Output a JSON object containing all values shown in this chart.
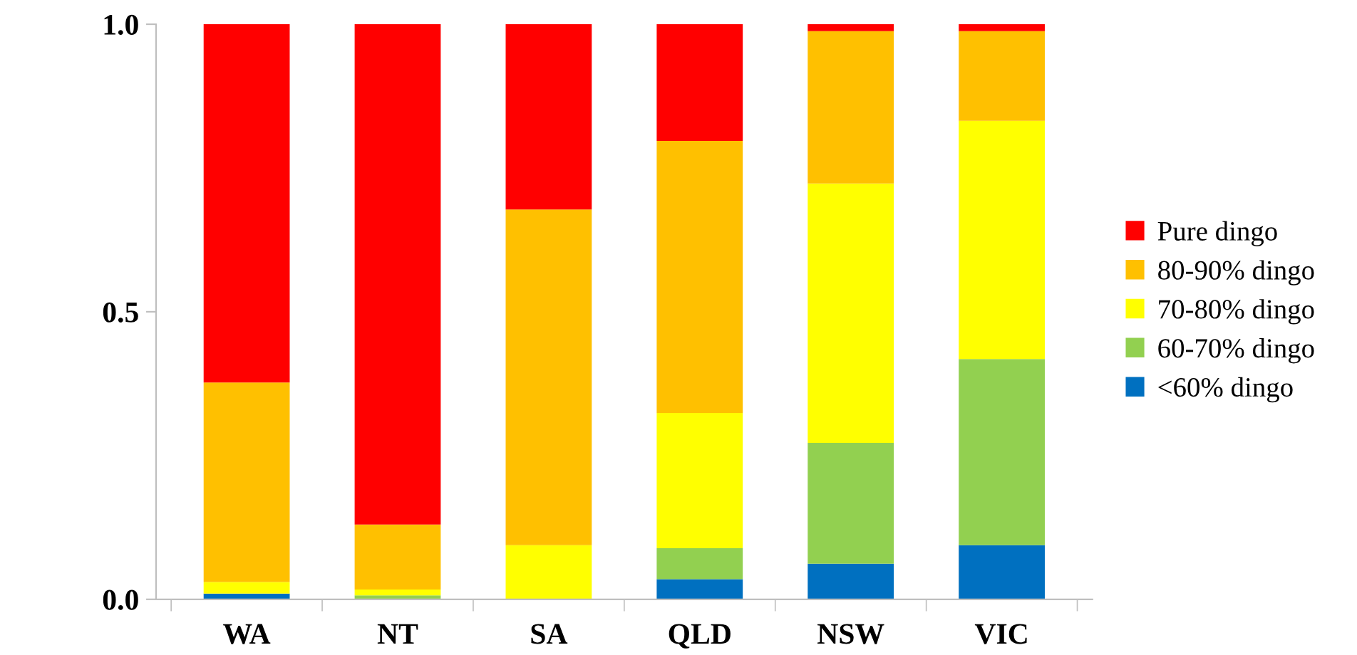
{
  "chart_data": {
    "type": "bar",
    "stacked": true,
    "categories": [
      "WA",
      "NT",
      "SA",
      "QLD",
      "NSW",
      "VIC"
    ],
    "series": [
      {
        "name": "<60% dingo",
        "color": "#0070c0",
        "values": [
          0.01,
          0,
          0,
          0.035,
          0.062,
          0.094
        ]
      },
      {
        "name": "60-70% dingo",
        "color": "#92d050",
        "values": [
          0,
          0.007,
          0,
          0.054,
          0.21,
          0.324
        ]
      },
      {
        "name": "70-80% dingo",
        "color": "#ffff00",
        "values": [
          0.02,
          0.01,
          0.094,
          0.235,
          0.451,
          0.414
        ]
      },
      {
        "name": "80-90% dingo",
        "color": "#ffc000",
        "values": [
          0.347,
          0.113,
          0.584,
          0.473,
          0.265,
          0.156
        ]
      },
      {
        "name": "Pure dingo",
        "color": "#ff0000",
        "values": [
          0.623,
          0.87,
          0.322,
          0.203,
          0.012,
          0.012
        ]
      }
    ],
    "ylim": [
      0,
      1
    ],
    "yticks": [
      {
        "value": 0,
        "label": "0.0"
      },
      {
        "value": 0.5,
        "label": "0.5"
      },
      {
        "value": 1,
        "label": "1.0"
      }
    ],
    "legend": "right"
  }
}
